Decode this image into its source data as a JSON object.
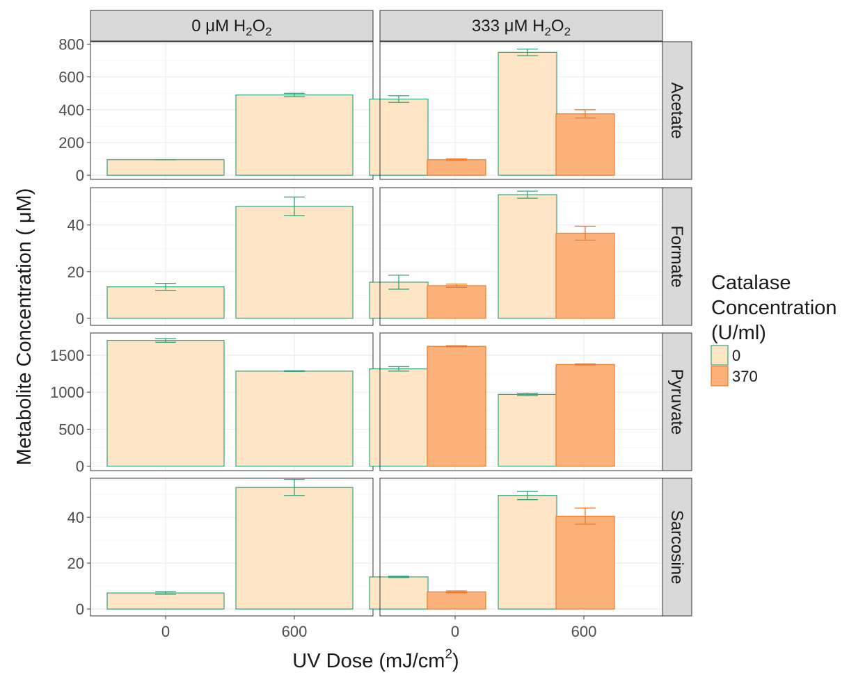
{
  "colors": {
    "catalase_0_fill": "#fee5c6",
    "catalase_0_line": "#31a37a",
    "catalase_370_fill": "#fbb179",
    "catalase_370_line": "#ec7c2f",
    "strip_bg": "#d9d9d9"
  },
  "chart_data": {
    "type": "bar",
    "xlabel_main": "UV Dose (mJ/cm",
    "xlabel_sup": "2",
    "xlabel_tail": ")",
    "ylabel": "Metabolite Concentration ( μM)",
    "legend": {
      "title_lines": [
        "Catalase",
        "Concentration",
        "(U/ml)"
      ],
      "placement": "right",
      "entries": [
        {
          "label": "0",
          "fill": "#fee5c6",
          "line": "#31a37a"
        },
        {
          "label": "370",
          "fill": "#fbb179",
          "line": "#ec7c2f"
        }
      ]
    },
    "grid": true,
    "columns": [
      {
        "label_main": "0 μM H",
        "label_sub": "2",
        "label_mid": "O",
        "label_sub2": "2",
        "x_categories": [
          "0",
          "600"
        ],
        "series_present": [
          "0"
        ]
      },
      {
        "label_main": "333 μM H",
        "label_sub": "2",
        "label_mid": "O",
        "label_sub2": "2",
        "x_categories": [
          "0",
          "600"
        ],
        "series_present": [
          "0",
          "370"
        ]
      }
    ],
    "rows": [
      {
        "label": "Acetate",
        "ylim": [
          -25,
          815
        ],
        "yticks": [
          0,
          200,
          400,
          600,
          800
        ],
        "yticks_labels": [
          "0",
          "200",
          "400",
          "600",
          "800"
        ],
        "values": [
          {
            "col": 0,
            "x": "0",
            "catalase": "0",
            "y": 95,
            "err": 0
          },
          {
            "col": 0,
            "x": "600",
            "catalase": "0",
            "y": 490,
            "err": 10
          },
          {
            "col": 1,
            "x": "0",
            "catalase": "0",
            "y": 465,
            "err": 20
          },
          {
            "col": 1,
            "x": "0",
            "catalase": "370",
            "y": 95,
            "err": 5
          },
          {
            "col": 1,
            "x": "600",
            "catalase": "0",
            "y": 750,
            "err": 20
          },
          {
            "col": 1,
            "x": "600",
            "catalase": "370",
            "y": 375,
            "err": 25
          }
        ]
      },
      {
        "label": "Formate",
        "ylim": [
          -3,
          56
        ],
        "yticks": [
          0,
          20,
          40
        ],
        "yticks_labels": [
          "0",
          "20",
          "40"
        ],
        "values": [
          {
            "col": 0,
            "x": "0",
            "catalase": "0",
            "y": 13.5,
            "err": 1.5
          },
          {
            "col": 0,
            "x": "600",
            "catalase": "0",
            "y": 48,
            "err": 4
          },
          {
            "col": 1,
            "x": "0",
            "catalase": "0",
            "y": 15.5,
            "err": 3
          },
          {
            "col": 1,
            "x": "0",
            "catalase": "370",
            "y": 14,
            "err": 0.7
          },
          {
            "col": 1,
            "x": "600",
            "catalase": "0",
            "y": 53,
            "err": 1.5
          },
          {
            "col": 1,
            "x": "600",
            "catalase": "370",
            "y": 36.5,
            "err": 3
          }
        ]
      },
      {
        "label": "Pyruvate",
        "ylim": [
          -60,
          1800
        ],
        "yticks": [
          0,
          500,
          1000,
          1500
        ],
        "yticks_labels": [
          "0",
          "500",
          "1000",
          "1500"
        ],
        "values": [
          {
            "col": 0,
            "x": "0",
            "catalase": "0",
            "y": 1700,
            "err": 25
          },
          {
            "col": 0,
            "x": "600",
            "catalase": "0",
            "y": 1285,
            "err": 5
          },
          {
            "col": 1,
            "x": "0",
            "catalase": "0",
            "y": 1315,
            "err": 30
          },
          {
            "col": 1,
            "x": "0",
            "catalase": "370",
            "y": 1620,
            "err": 8
          },
          {
            "col": 1,
            "x": "600",
            "catalase": "0",
            "y": 970,
            "err": 15
          },
          {
            "col": 1,
            "x": "600",
            "catalase": "370",
            "y": 1375,
            "err": 8
          }
        ]
      },
      {
        "label": "Sarcosine",
        "ylim": [
          -3,
          57
        ],
        "yticks": [
          0,
          20,
          40
        ],
        "yticks_labels": [
          "0",
          "20",
          "40"
        ],
        "values": [
          {
            "col": 0,
            "x": "0",
            "catalase": "0",
            "y": 7,
            "err": 0.6
          },
          {
            "col": 0,
            "x": "600",
            "catalase": "0",
            "y": 53,
            "err": 3.5
          },
          {
            "col": 1,
            "x": "0",
            "catalase": "0",
            "y": 14,
            "err": 0.3
          },
          {
            "col": 1,
            "x": "0",
            "catalase": "370",
            "y": 7.5,
            "err": 0.4
          },
          {
            "col": 1,
            "x": "600",
            "catalase": "0",
            "y": 49.5,
            "err": 1.8
          },
          {
            "col": 1,
            "x": "600",
            "catalase": "370",
            "y": 40.5,
            "err": 3.5
          }
        ]
      }
    ]
  }
}
